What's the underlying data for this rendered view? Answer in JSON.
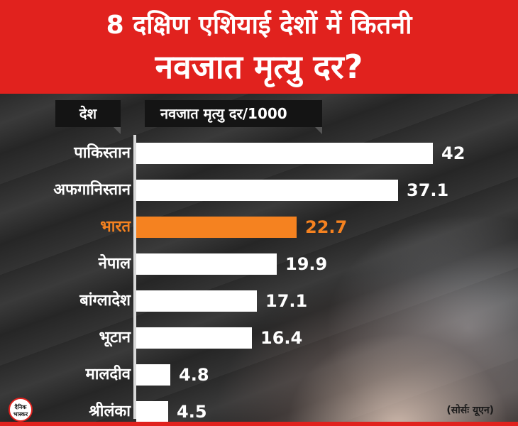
{
  "header": {
    "title_line1": "8 दक्षिण एशियाई देशों में कितनी",
    "title_line2": "नवजात मृत्यु दर?"
  },
  "column_headers": {
    "country": "देश",
    "metric": "नवजात मृत्यु दर/1000"
  },
  "source": "(सोर्सः यूएन)",
  "logo_text": "दैनिक भास्कर",
  "colors": {
    "header_red": "#e1221e",
    "bar_default": "#ffffff",
    "highlight": "#f58220"
  },
  "chart_data": {
    "type": "bar",
    "orientation": "horizontal",
    "title": "8 दक्षिण एशियाई देशों में कितनी नवजात मृत्यु दर?",
    "xlabel": "नवजात मृत्यु दर/1000",
    "ylabel": "देश",
    "categories": [
      "पाकिस्तान",
      "अफगानिस्तान",
      "भारत",
      "नेपाल",
      "बांग्लादेश",
      "भूटान",
      "मालदीव",
      "श्रीलंका"
    ],
    "values": [
      42,
      37.1,
      22.7,
      19.9,
      17.1,
      16.4,
      4.8,
      4.5
    ],
    "value_labels": [
      "42",
      "37.1",
      "22.7",
      "19.9",
      "17.1",
      "16.4",
      "4.8",
      "4.5"
    ],
    "highlighted_category": "भारत",
    "xlim": [
      0,
      42
    ],
    "grid": false,
    "legend": "none"
  }
}
